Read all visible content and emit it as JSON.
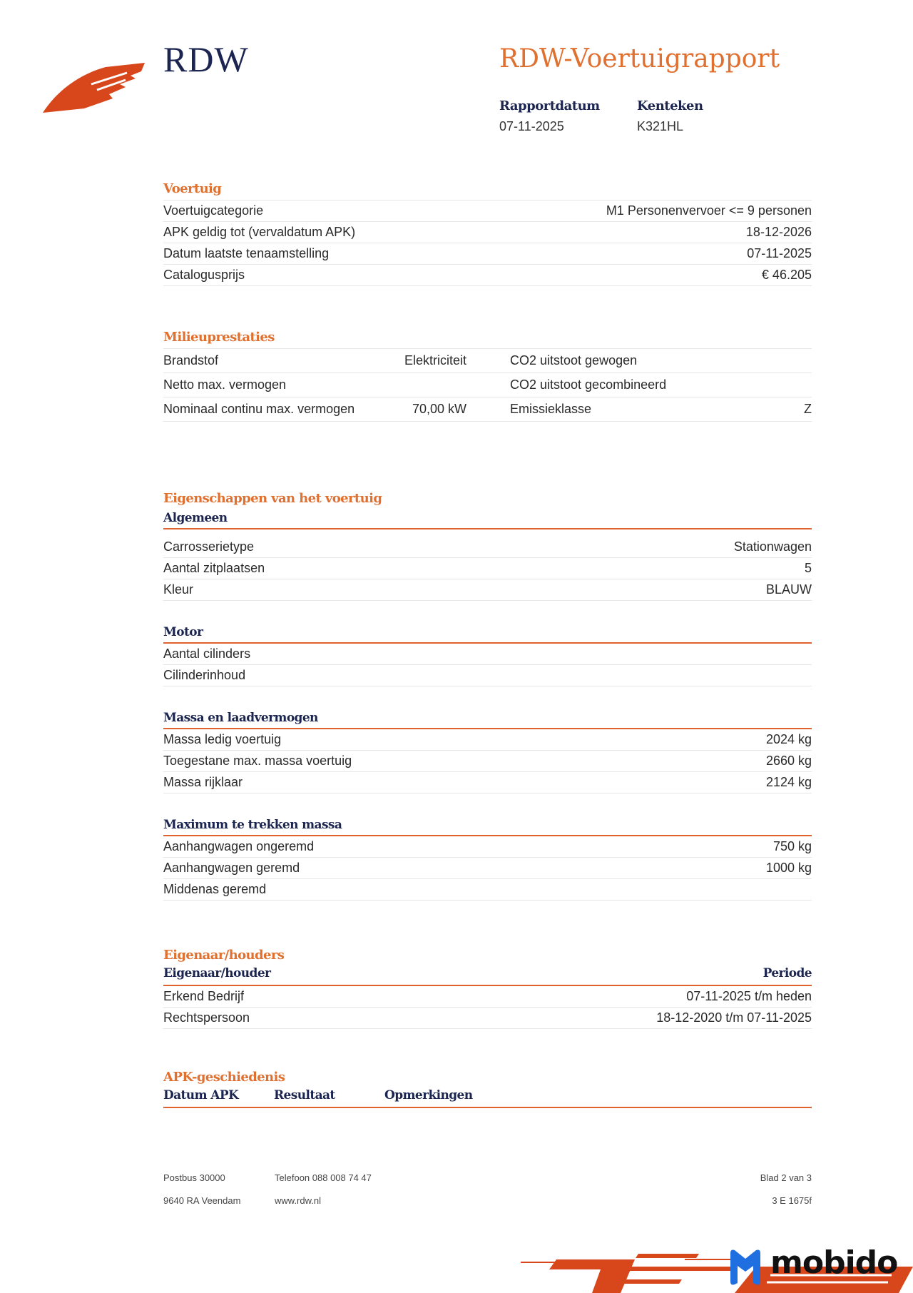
{
  "header": {
    "logo": "RDW",
    "title": "RDW-Voertuigrapport",
    "rapportdatum_label": "Rapportdatum",
    "rapportdatum": "07-11-2025",
    "kenteken_label": "Kenteken",
    "kenteken": "K321HL"
  },
  "voertuig": {
    "title": "Voertuig",
    "rows": [
      {
        "label": "Voertuigcategorie",
        "value": "M1 Personenvervoer <= 9 personen"
      },
      {
        "label": "APK geldig tot (vervaldatum APK)",
        "value": "18-12-2026"
      },
      {
        "label": "Datum laatste tenaamstelling",
        "value": "07-11-2025"
      },
      {
        "label": "Catalogusprijs",
        "value": "€ 46.205"
      }
    ]
  },
  "milieu": {
    "title": "Milieuprestaties",
    "rows": [
      {
        "l1": "Brandstof",
        "v1": "Elektriciteit",
        "l2": "CO2 uitstoot gewogen",
        "v2": ""
      },
      {
        "l1": "Netto max. vermogen",
        "v1": "",
        "l2": "CO2 uitstoot gecombineerd",
        "v2": ""
      },
      {
        "l1": "Nominaal continu max. vermogen",
        "v1": "70,00 kW",
        "l2": "Emissieklasse",
        "v2": "Z"
      }
    ]
  },
  "eigenschappen": {
    "title": "Eigenschappen van het voertuig",
    "groups": [
      {
        "title": "Algemeen",
        "rows": [
          {
            "label": "Carrosserietype",
            "value": "Stationwagen"
          },
          {
            "label": "Aantal zitplaatsen",
            "value": "5"
          },
          {
            "label": "Kleur",
            "value": "BLAUW"
          }
        ]
      },
      {
        "title": "Motor",
        "rows": [
          {
            "label": "Aantal cilinders",
            "value": ""
          },
          {
            "label": "Cilinderinhoud",
            "value": ""
          }
        ]
      },
      {
        "title": "Massa en laadvermogen",
        "rows": [
          {
            "label": "Massa ledig voertuig",
            "value": "2024 kg"
          },
          {
            "label": "Toegestane max. massa voertuig",
            "value": "2660 kg"
          },
          {
            "label": "Massa rijklaar",
            "value": "2124 kg"
          }
        ]
      },
      {
        "title": "Maximum te trekken massa",
        "rows": [
          {
            "label": "Aanhangwagen ongeremd",
            "value": "750 kg"
          },
          {
            "label": "Aanhangwagen geremd",
            "value": "1000 kg"
          },
          {
            "label": "Middenas geremd",
            "value": ""
          }
        ]
      }
    ]
  },
  "eigenaar": {
    "title": "Eigenaar/houders",
    "col1": "Eigenaar/houder",
    "col2": "Periode",
    "rows": [
      {
        "label": "Erkend Bedrijf",
        "value": "07-11-2025 t/m heden"
      },
      {
        "label": "Rechtspersoon",
        "value": "18-12-2020 t/m 07-11-2025"
      }
    ]
  },
  "apk": {
    "title": "APK-geschiedenis",
    "cols": [
      "Datum APK",
      "Resultaat",
      "Opmerkingen"
    ]
  },
  "footer": {
    "address1": "Postbus 30000",
    "address2": "9640 RA Veendam",
    "phone": "Telefoon 088 008 74 47",
    "web": "www.rdw.nl",
    "page": "Blad 2 van 3",
    "code": "3 E 1675f"
  },
  "watermark": {
    "text": "mobido",
    "color": "#1f6fe0"
  },
  "colors": {
    "accent": "#e07030",
    "navy": "#1b2550",
    "logo": "#d8461c"
  }
}
